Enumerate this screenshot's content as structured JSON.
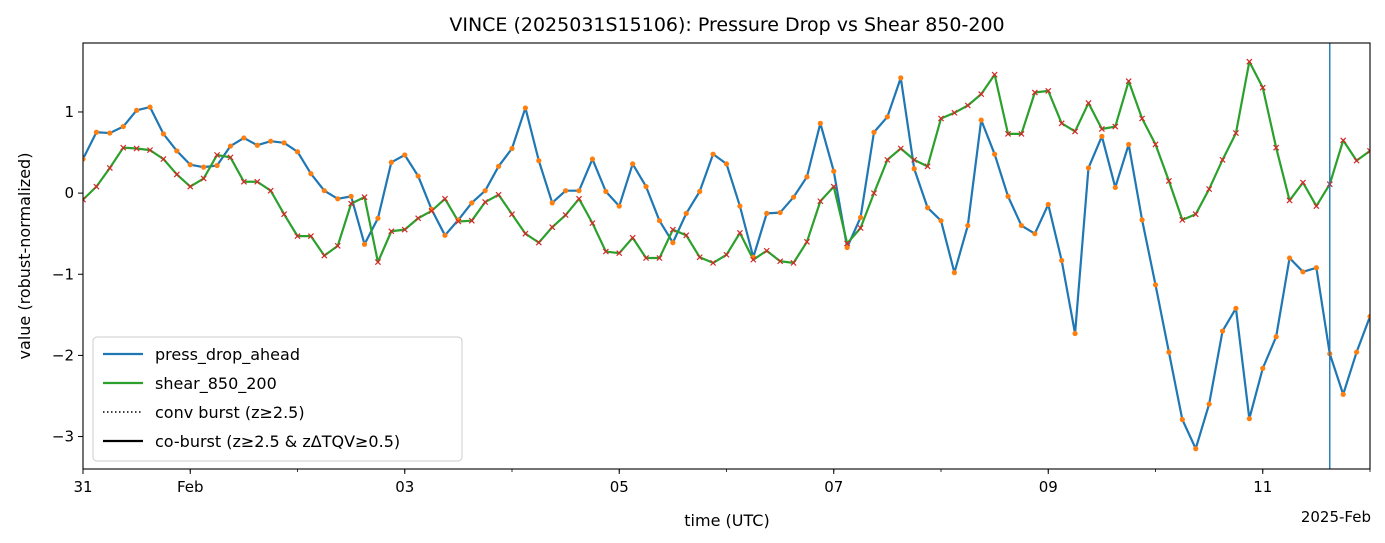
{
  "chart_data": {
    "type": "line",
    "title": "VINCE (2025031S15106): Pressure Drop vs Shear 850-200",
    "xlabel": "time (UTC)",
    "ylabel": "value (robust-normalized)",
    "x_start": "2025-01-31T00:00",
    "x_step_hours": 3,
    "xlim": [
      "2025-01-31T00:00",
      "2025-02-12T00:00"
    ],
    "ylim": [
      -3.4,
      1.85
    ],
    "y_ticks": [
      1,
      0,
      -1,
      -2,
      -3
    ],
    "y_tick_labels": [
      "1",
      "0",
      "−1",
      "−2",
      "−3"
    ],
    "x_ticks": [
      {
        "x": "2025-01-31T00:00",
        "label": "31"
      },
      {
        "x": "2025-02-01T00:00",
        "label": "Feb"
      },
      {
        "x": "2025-02-03T00:00",
        "label": "03"
      },
      {
        "x": "2025-02-05T00:00",
        "label": "05"
      },
      {
        "x": "2025-02-07T00:00",
        "label": "07"
      },
      {
        "x": "2025-02-09T00:00",
        "label": "09"
      },
      {
        "x": "2025-02-11T00:00",
        "label": "11"
      }
    ],
    "x_offset_label": "2025-Feb",
    "series": [
      {
        "name": "press_drop_ahead",
        "color": "#1f77b4",
        "marker_color": "#ff7f0e",
        "marker": "dot",
        "values": [
          0.42,
          0.75,
          0.74,
          0.82,
          1.02,
          1.06,
          0.73,
          0.52,
          0.35,
          0.32,
          0.34,
          0.58,
          0.68,
          0.59,
          0.64,
          0.62,
          0.51,
          0.24,
          0.03,
          -0.07,
          -0.04,
          -0.63,
          -0.31,
          0.38,
          0.47,
          0.21,
          -0.2,
          -0.52,
          -0.33,
          -0.12,
          0.03,
          0.33,
          0.55,
          1.05,
          0.4,
          -0.12,
          0.03,
          0.03,
          0.42,
          0.02,
          -0.16,
          0.36,
          0.08,
          -0.34,
          -0.61,
          -0.25,
          0.02,
          0.48,
          0.36,
          -0.16,
          -0.79,
          -0.25,
          -0.24,
          -0.05,
          0.2,
          0.86,
          0.27,
          -0.67,
          -0.3,
          0.75,
          0.94,
          1.42,
          0.3,
          -0.18,
          -0.34,
          -0.98,
          -0.4,
          0.9,
          0.48,
          -0.04,
          -0.4,
          -0.5,
          -0.14,
          -0.83,
          -1.73,
          0.31,
          0.7,
          0.07,
          0.6,
          -0.33,
          -1.13,
          -1.96,
          -2.79,
          -3.15,
          -2.6,
          -1.7,
          -1.42,
          -2.78,
          -2.16,
          -1.77,
          -0.8,
          -0.97,
          -0.92,
          -1.98,
          -2.48,
          -1.96,
          -1.52
        ]
      },
      {
        "name": "shear_850_200",
        "color": "#2ca02c",
        "marker_color": "#d62728",
        "marker": "x",
        "values": [
          -0.08,
          0.08,
          0.31,
          0.56,
          0.55,
          0.53,
          0.42,
          0.23,
          0.08,
          0.18,
          0.47,
          0.44,
          0.14,
          0.14,
          0.03,
          -0.26,
          -0.53,
          -0.53,
          -0.77,
          -0.65,
          -0.13,
          -0.05,
          -0.85,
          -0.47,
          -0.45,
          -0.31,
          -0.22,
          -0.07,
          -0.35,
          -0.34,
          -0.11,
          -0.02,
          -0.26,
          -0.5,
          -0.61,
          -0.42,
          -0.27,
          -0.07,
          -0.37,
          -0.72,
          -0.74,
          -0.55,
          -0.8,
          -0.8,
          -0.45,
          -0.52,
          -0.79,
          -0.86,
          -0.76,
          -0.49,
          -0.82,
          -0.71,
          -0.84,
          -0.86,
          -0.6,
          -0.1,
          0.08,
          -0.62,
          -0.43,
          0.0,
          0.41,
          0.55,
          0.41,
          0.33,
          0.92,
          0.99,
          1.08,
          1.22,
          1.46,
          0.73,
          0.73,
          1.24,
          1.26,
          0.86,
          0.76,
          1.11,
          0.79,
          0.82,
          1.38,
          0.92,
          0.6,
          0.15,
          -0.33,
          -0.26,
          0.05,
          0.41,
          0.74,
          1.62,
          1.3,
          0.56,
          -0.09,
          0.13,
          -0.16,
          0.11,
          0.65,
          0.4,
          0.52
        ]
      }
    ],
    "vertical_line": {
      "x": "2025-02-11T15:00",
      "color": "#1f77b4"
    },
    "legend": {
      "placement": "lower-left",
      "entries": [
        {
          "label": "press_drop_ahead",
          "style": "solid",
          "color": "#1f77b4"
        },
        {
          "label": "shear_850_200",
          "style": "solid",
          "color": "#2ca02c"
        },
        {
          "label": "conv burst (z≥2.5)",
          "style": "dotted",
          "color": "#000000"
        },
        {
          "label": "co-burst (z≥2.5 & zΔTQV≥0.5)",
          "style": "solid",
          "color": "#000000"
        }
      ]
    },
    "grid": false
  }
}
